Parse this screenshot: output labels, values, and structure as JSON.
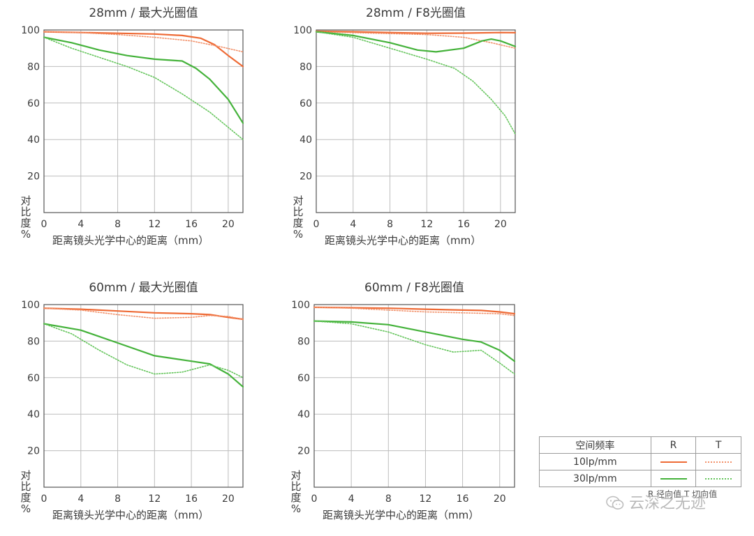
{
  "colors": {
    "orange": "#ee6a35",
    "orange_light": "#f2916a",
    "green": "#44b23a",
    "green_light": "#63c45a",
    "grid": "#bdbdbd",
    "frame": "#555555"
  },
  "chart_data": [
    {
      "type": "line",
      "title": "28mm / 最大光圈值",
      "xlabel": "距离镜头光学中心的距离（mm）",
      "ylabel": "对比度%",
      "xticks": [
        0,
        4,
        8,
        12,
        16,
        20
      ],
      "yticks": [
        20,
        40,
        60,
        80,
        100
      ],
      "xlim": [
        0,
        21.6
      ],
      "ylim": [
        0,
        100
      ],
      "grid": true,
      "series": [
        {
          "name": "10lp/mm R",
          "color": "orange",
          "style": "solid",
          "points": [
            [
              0,
              99
            ],
            [
              4,
              98.6
            ],
            [
              8,
              98.2
            ],
            [
              12,
              97.8
            ],
            [
              15,
              97
            ],
            [
              17,
              95.5
            ],
            [
              18.5,
              92
            ],
            [
              20,
              86
            ],
            [
              21.6,
              80
            ]
          ]
        },
        {
          "name": "10lp/mm T",
          "color": "orange",
          "style": "dotted",
          "points": [
            [
              0,
              99
            ],
            [
              4,
              98.5
            ],
            [
              8,
              97.5
            ],
            [
              12,
              96
            ],
            [
              16,
              94
            ],
            [
              19,
              91
            ],
            [
              21.6,
              88
            ]
          ]
        },
        {
          "name": "30lp/mm R",
          "color": "green",
          "style": "solid",
          "points": [
            [
              0,
              96
            ],
            [
              3,
              93
            ],
            [
              6,
              89
            ],
            [
              9,
              86
            ],
            [
              12,
              84
            ],
            [
              15,
              83
            ],
            [
              16.5,
              79
            ],
            [
              18,
              73
            ],
            [
              20,
              62
            ],
            [
              21.6,
              49
            ]
          ]
        },
        {
          "name": "30lp/mm T",
          "color": "green",
          "style": "dotted",
          "points": [
            [
              0,
              96
            ],
            [
              3,
              90
            ],
            [
              6,
              85
            ],
            [
              9,
              80
            ],
            [
              12,
              74
            ],
            [
              15,
              65
            ],
            [
              18,
              55
            ],
            [
              21.6,
              40
            ]
          ]
        }
      ]
    },
    {
      "type": "line",
      "title": "28mm / F8光圈值",
      "xlabel": "距离镜头光学中心的距离（mm）",
      "ylabel": "对比度%",
      "xticks": [
        0,
        4,
        8,
        12,
        16,
        20
      ],
      "yticks": [
        20,
        40,
        60,
        80,
        100
      ],
      "xlim": [
        0,
        21.6
      ],
      "ylim": [
        0,
        100
      ],
      "grid": true,
      "series": [
        {
          "name": "10lp/mm R",
          "color": "orange",
          "style": "solid",
          "points": [
            [
              0,
              99.3
            ],
            [
              4,
              99
            ],
            [
              8,
              98.6
            ],
            [
              12,
              98.2
            ],
            [
              16,
              98.3
            ],
            [
              20,
              98.6
            ],
            [
              21.6,
              98.5
            ]
          ]
        },
        {
          "name": "10lp/mm T",
          "color": "orange",
          "style": "dotted",
          "points": [
            [
              0,
              99
            ],
            [
              4,
              98.5
            ],
            [
              8,
              98
            ],
            [
              12,
              97.5
            ],
            [
              16,
              96
            ],
            [
              19,
              93
            ],
            [
              21.6,
              90
            ]
          ]
        },
        {
          "name": "30lp/mm R",
          "color": "green",
          "style": "solid",
          "points": [
            [
              0,
              99
            ],
            [
              4,
              97
            ],
            [
              8,
              93
            ],
            [
              11,
              89
            ],
            [
              13,
              88
            ],
            [
              16,
              90
            ],
            [
              18,
              94
            ],
            [
              19,
              95
            ],
            [
              20,
              94
            ],
            [
              21.6,
              91
            ]
          ]
        },
        {
          "name": "30lp/mm T",
          "color": "green",
          "style": "dotted",
          "points": [
            [
              0,
              99
            ],
            [
              4,
              96
            ],
            [
              8,
              90
            ],
            [
              12,
              84
            ],
            [
              15,
              79
            ],
            [
              17,
              72
            ],
            [
              19,
              62
            ],
            [
              20.5,
              53
            ],
            [
              21.6,
              43
            ]
          ]
        }
      ]
    },
    {
      "type": "line",
      "title": "60mm / 最大光圈值",
      "xlabel": "距离镜头光学中心的距离（mm）",
      "ylabel": "对比度%",
      "xticks": [
        0,
        4,
        8,
        12,
        16,
        20
      ],
      "yticks": [
        20,
        40,
        60,
        80,
        100
      ],
      "xlim": [
        0,
        21.6
      ],
      "ylim": [
        0,
        100
      ],
      "grid": true,
      "series": [
        {
          "name": "10lp/mm R",
          "color": "orange",
          "style": "solid",
          "points": [
            [
              0,
              98
            ],
            [
              4,
              97.5
            ],
            [
              8,
              96.5
            ],
            [
              12,
              95.5
            ],
            [
              16,
              95
            ],
            [
              18,
              94.5
            ],
            [
              20,
              93
            ],
            [
              21.6,
              92
            ]
          ]
        },
        {
          "name": "10lp/mm T",
          "color": "orange",
          "style": "dotted",
          "points": [
            [
              0,
              98
            ],
            [
              4,
              97
            ],
            [
              8,
              94.5
            ],
            [
              12,
              92.5
            ],
            [
              16,
              93
            ],
            [
              18,
              94
            ],
            [
              20,
              93.5
            ],
            [
              21.6,
              92
            ]
          ]
        },
        {
          "name": "30lp/mm R",
          "color": "green",
          "style": "solid",
          "points": [
            [
              0,
              89.5
            ],
            [
              4,
              86
            ],
            [
              8,
              79
            ],
            [
              12,
              72
            ],
            [
              16,
              69
            ],
            [
              18,
              67.5
            ],
            [
              20,
              62
            ],
            [
              21.6,
              55
            ]
          ]
        },
        {
          "name": "30lp/mm T",
          "color": "green",
          "style": "dotted",
          "points": [
            [
              0,
              89.5
            ],
            [
              3,
              84
            ],
            [
              6,
              75
            ],
            [
              9,
              67
            ],
            [
              12,
              62
            ],
            [
              15,
              63
            ],
            [
              18,
              67
            ],
            [
              20,
              64
            ],
            [
              21.6,
              60
            ]
          ]
        }
      ]
    },
    {
      "type": "line",
      "title": "60mm / F8光圈值",
      "xlabel": "距离镜头光学中心的距离（mm）",
      "ylabel": "对比度%",
      "xticks": [
        0,
        4,
        8,
        12,
        16,
        20
      ],
      "yticks": [
        20,
        40,
        60,
        80,
        100
      ],
      "xlim": [
        0,
        21.6
      ],
      "ylim": [
        0,
        100
      ],
      "grid": true,
      "series": [
        {
          "name": "10lp/mm R",
          "color": "orange",
          "style": "solid",
          "points": [
            [
              0,
              98.5
            ],
            [
              4,
              98.3
            ],
            [
              8,
              98
            ],
            [
              12,
              97.5
            ],
            [
              16,
              97
            ],
            [
              18,
              96.8
            ],
            [
              20,
              96
            ],
            [
              21.6,
              95
            ]
          ]
        },
        {
          "name": "10lp/mm T",
          "color": "orange",
          "style": "dotted",
          "points": [
            [
              0,
              98.5
            ],
            [
              4,
              98
            ],
            [
              8,
              97
            ],
            [
              12,
              96
            ],
            [
              16,
              95.5
            ],
            [
              20,
              95
            ],
            [
              21.6,
              94
            ]
          ]
        },
        {
          "name": "30lp/mm R",
          "color": "green",
          "style": "solid",
          "points": [
            [
              0,
              91
            ],
            [
              4,
              90.5
            ],
            [
              8,
              89
            ],
            [
              12,
              85
            ],
            [
              16,
              81
            ],
            [
              18,
              79.5
            ],
            [
              20,
              75
            ],
            [
              21.6,
              69
            ]
          ]
        },
        {
          "name": "30lp/mm T",
          "color": "green",
          "style": "dotted",
          "points": [
            [
              0,
              91
            ],
            [
              4,
              89.5
            ],
            [
              8,
              85
            ],
            [
              12,
              78
            ],
            [
              15,
              74
            ],
            [
              18,
              75
            ],
            [
              20,
              68
            ],
            [
              21.6,
              62
            ]
          ]
        }
      ]
    }
  ],
  "legend": {
    "header": "空间频率",
    "col_r": "R",
    "col_t": "T",
    "rows": [
      {
        "label": "10lp/mm",
        "color": "orange"
      },
      {
        "label": "30lp/mm",
        "color": "green"
      }
    ],
    "overlap_text": "R 径向值  T 切向值"
  },
  "watermark": {
    "text": "云深之无迹"
  }
}
